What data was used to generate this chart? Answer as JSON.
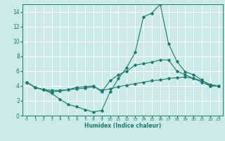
{
  "title": "",
  "xlabel": "Humidex (Indice chaleur)",
  "ylabel": "",
  "background_color": "#cceaea",
  "grid_color": "#ffffff",
  "line_color": "#1a7a6e",
  "xlim": [
    -0.5,
    23.5
  ],
  "ylim": [
    0,
    15
  ],
  "xticks": [
    0,
    1,
    2,
    3,
    4,
    5,
    6,
    7,
    8,
    9,
    10,
    11,
    12,
    13,
    14,
    15,
    16,
    17,
    18,
    19,
    20,
    21,
    22,
    23
  ],
  "yticks": [
    0,
    2,
    4,
    6,
    8,
    10,
    12,
    14
  ],
  "lines": [
    {
      "x": [
        0,
        1,
        2,
        3,
        4,
        5,
        6,
        7,
        8,
        9,
        10,
        11,
        12,
        13,
        14,
        15,
        16,
        17,
        18,
        19,
        20,
        21,
        22,
        23
      ],
      "y": [
        4.5,
        3.8,
        3.5,
        3.4,
        3.4,
        3.5,
        3.6,
        3.7,
        3.9,
        3.4,
        3.6,
        3.9,
        4.1,
        4.3,
        4.5,
        4.7,
        4.8,
        5.0,
        5.1,
        5.2,
        5.0,
        4.7,
        4.2,
        4.0
      ]
    },
    {
      "x": [
        0,
        1,
        2,
        3,
        4,
        5,
        6,
        7,
        8,
        9,
        10,
        11,
        12,
        13,
        14,
        15,
        16,
        17,
        18,
        19,
        20,
        21,
        22,
        23
      ],
      "y": [
        4.5,
        3.8,
        3.5,
        3.0,
        2.2,
        1.5,
        1.2,
        0.8,
        0.5,
        0.7,
        3.2,
        5.0,
        6.5,
        8.5,
        13.3,
        13.8,
        15.0,
        9.7,
        7.3,
        5.9,
        5.5,
        4.8,
        4.0,
        4.0
      ]
    },
    {
      "x": [
        0,
        1,
        2,
        3,
        4,
        5,
        6,
        7,
        8,
        9,
        10,
        11,
        12,
        13,
        14,
        15,
        16,
        17,
        18,
        19,
        20,
        21,
        22,
        23
      ],
      "y": [
        4.5,
        3.8,
        3.5,
        3.2,
        3.3,
        3.5,
        3.8,
        3.9,
        4.0,
        3.2,
        4.7,
        5.5,
        6.0,
        6.8,
        7.0,
        7.2,
        7.5,
        7.5,
        6.0,
        5.5,
        5.0,
        4.5,
        4.0,
        4.0
      ]
    }
  ]
}
